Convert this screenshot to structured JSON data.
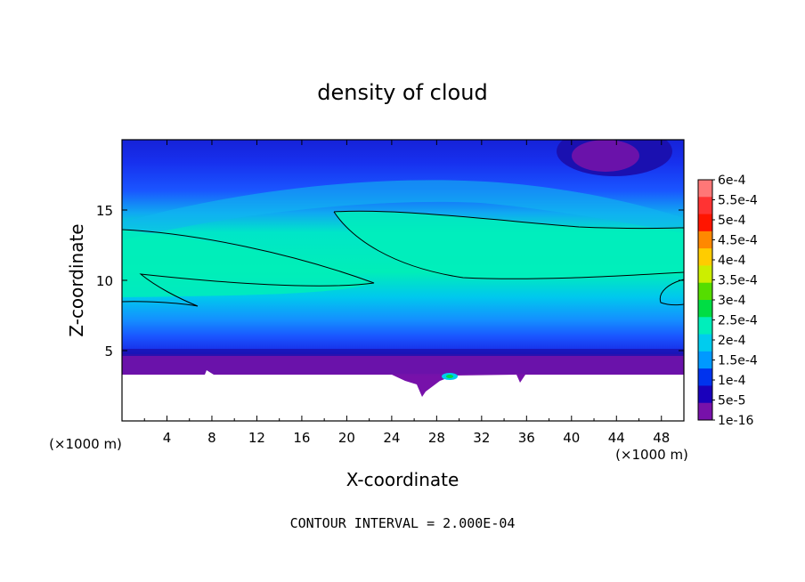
{
  "chart_data": {
    "type": "heatmap",
    "title": "density of cloud",
    "xlabel": "X-coordinate",
    "ylabel": "Z-coordinate",
    "x_unit_left": "(×1000 m)",
    "x_unit_right": "(×1000 m)",
    "xlim": [
      0,
      50
    ],
    "ylim": [
      0,
      20
    ],
    "x_ticks": [
      4,
      8,
      12,
      16,
      20,
      24,
      28,
      32,
      36,
      40,
      44,
      48
    ],
    "y_ticks": [
      5,
      10,
      15
    ],
    "contour_interval_label": "CONTOUR INTERVAL = 2.000E-04",
    "colorbar": {
      "labels": [
        "6e-4",
        "5.5e-4",
        "5e-4",
        "4.5e-4",
        "4e-4",
        "3.5e-4",
        "3e-4",
        "2.5e-4",
        "2e-4",
        "1.5e-4",
        "1e-4",
        "5e-5",
        "1e-16"
      ],
      "colors": [
        "#ff7777",
        "#ff3333",
        "#ff1500",
        "#ff8800",
        "#ffcc00",
        "#ccee00",
        "#55dd00",
        "#00dd44",
        "#00eebb",
        "#00ccee",
        "#0099ff",
        "#0033ee",
        "#1a00bb",
        "#7711aa"
      ]
    },
    "field_summary": {
      "band_max_value": "2e-4",
      "band_z_range": [
        8.5,
        15
      ],
      "surface_z": 3.2,
      "notes": "lowest layer near surface ~1e-16 to 5e-5; maximum layer between z=8.5 and z=15 reaching ~2e-4"
    }
  }
}
